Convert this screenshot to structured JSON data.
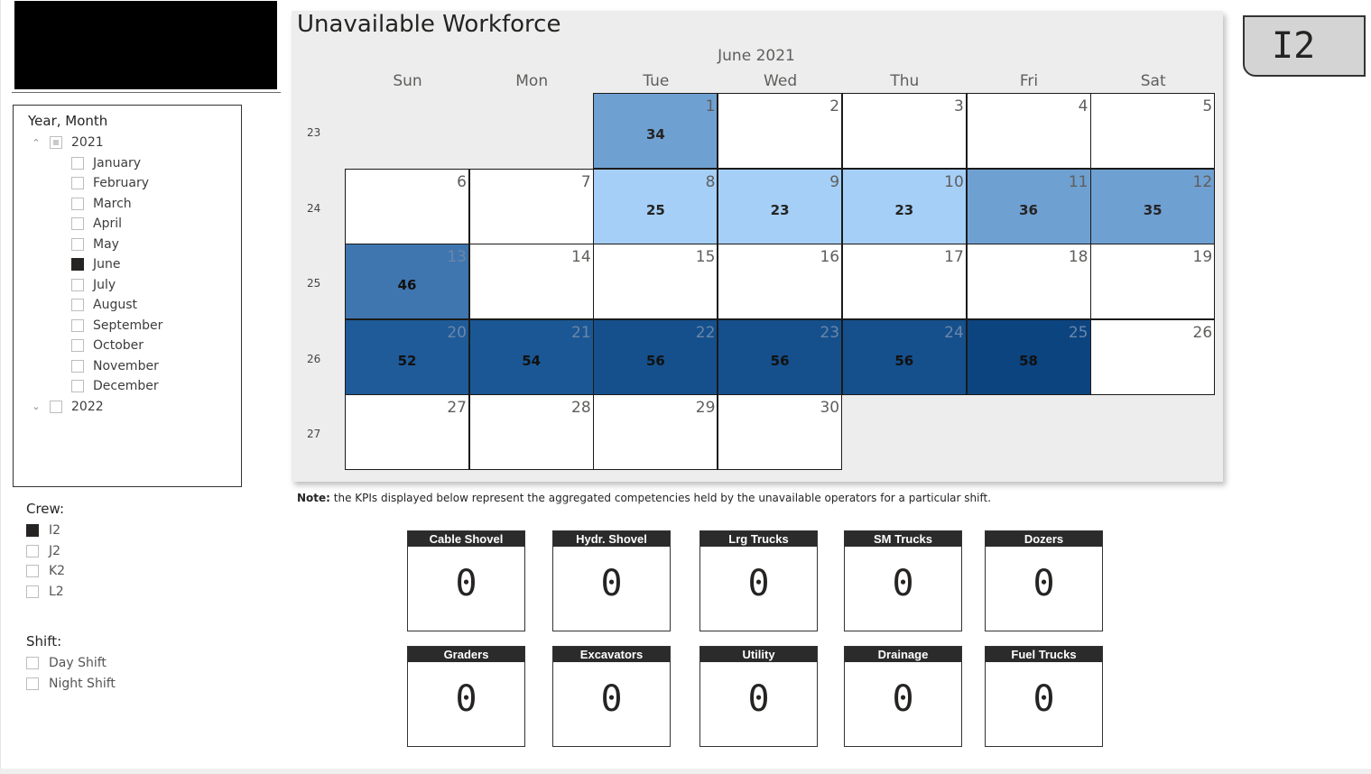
{
  "year_month_slicer": {
    "title": "Year, Month",
    "years": [
      {
        "label": "2021",
        "expanded": true,
        "state": "partial",
        "months": [
          {
            "label": "January",
            "checked": false
          },
          {
            "label": "February",
            "checked": false
          },
          {
            "label": "March",
            "checked": false
          },
          {
            "label": "April",
            "checked": false
          },
          {
            "label": "May",
            "checked": false
          },
          {
            "label": "June",
            "checked": true
          },
          {
            "label": "July",
            "checked": false
          },
          {
            "label": "August",
            "checked": false
          },
          {
            "label": "September",
            "checked": false
          },
          {
            "label": "October",
            "checked": false
          },
          {
            "label": "November",
            "checked": false
          },
          {
            "label": "December",
            "checked": false
          }
        ]
      },
      {
        "label": "2022",
        "expanded": false,
        "state": "unchecked",
        "months": []
      }
    ]
  },
  "crew_slicer": {
    "title": "Crew:",
    "options": [
      {
        "label": "I2",
        "checked": true
      },
      {
        "label": "J2",
        "checked": false
      },
      {
        "label": "K2",
        "checked": false
      },
      {
        "label": "L2",
        "checked": false
      }
    ]
  },
  "shift_slicer": {
    "title": "Shift:",
    "options": [
      {
        "label": "Day Shift",
        "checked": false
      },
      {
        "label": "Night Shift",
        "checked": false
      }
    ]
  },
  "calendar": {
    "title": "Unavailable Workforce",
    "month_label": "June 2021",
    "weekdays": [
      "Sun",
      "Mon",
      "Tue",
      "Wed",
      "Thu",
      "Fri",
      "Sat"
    ],
    "weeks": [
      {
        "week": "23",
        "days": [
          null,
          null,
          {
            "day": "1",
            "value": "34",
            "color": "#6fa0d2"
          },
          {
            "day": "2",
            "value": "",
            "color": "#ffffff"
          },
          {
            "day": "3",
            "value": "",
            "color": "#ffffff"
          },
          {
            "day": "4",
            "value": "",
            "color": "#ffffff"
          },
          {
            "day": "5",
            "value": "",
            "color": "#ffffff"
          }
        ]
      },
      {
        "week": "24",
        "days": [
          {
            "day": "6",
            "value": "",
            "color": "#ffffff"
          },
          {
            "day": "7",
            "value": "",
            "color": "#ffffff"
          },
          {
            "day": "8",
            "value": "25",
            "color": "#a5cff7"
          },
          {
            "day": "9",
            "value": "23",
            "color": "#a5cff7"
          },
          {
            "day": "10",
            "value": "23",
            "color": "#a5cff7"
          },
          {
            "day": "11",
            "value": "36",
            "color": "#6fa0d2"
          },
          {
            "day": "12",
            "value": "35",
            "color": "#6fa0d2"
          }
        ]
      },
      {
        "week": "25",
        "days": [
          {
            "day": "13",
            "value": "46",
            "color": "#3f76b0"
          },
          {
            "day": "14",
            "value": "",
            "color": "#ffffff"
          },
          {
            "day": "15",
            "value": "",
            "color": "#ffffff"
          },
          {
            "day": "16",
            "value": "",
            "color": "#ffffff"
          },
          {
            "day": "17",
            "value": "",
            "color": "#ffffff"
          },
          {
            "day": "18",
            "value": "",
            "color": "#ffffff"
          },
          {
            "day": "19",
            "value": "",
            "color": "#ffffff"
          }
        ]
      },
      {
        "week": "26",
        "days": [
          {
            "day": "20",
            "value": "52",
            "color": "#1f5b99"
          },
          {
            "day": "21",
            "value": "54",
            "color": "#1b5794"
          },
          {
            "day": "22",
            "value": "56",
            "color": "#15508c"
          },
          {
            "day": "23",
            "value": "56",
            "color": "#15508c"
          },
          {
            "day": "24",
            "value": "56",
            "color": "#15508c"
          },
          {
            "day": "25",
            "value": "58",
            "color": "#0c4480"
          },
          {
            "day": "26",
            "value": "",
            "color": "#ffffff"
          }
        ]
      },
      {
        "week": "27",
        "days": [
          {
            "day": "27",
            "value": "",
            "color": "#ffffff"
          },
          {
            "day": "28",
            "value": "",
            "color": "#ffffff"
          },
          {
            "day": "29",
            "value": "",
            "color": "#ffffff"
          },
          {
            "day": "30",
            "value": "",
            "color": "#ffffff"
          },
          null,
          null,
          null
        ]
      }
    ]
  },
  "crew_badge": "I2",
  "note": {
    "bold": "Note:",
    "text": " the KPIs displayed below represent the aggregated competencies held by the unavailable operators for a particular shift."
  },
  "kpis": [
    {
      "label": "Cable Shovel",
      "value": "0"
    },
    {
      "label": "Hydr. Shovel",
      "value": "0"
    },
    {
      "label": "Lrg Trucks",
      "value": "0"
    },
    {
      "label": "SM Trucks",
      "value": "0"
    },
    {
      "label": "Dozers",
      "value": "0"
    },
    {
      "label": "Graders",
      "value": "0"
    },
    {
      "label": "Excavators",
      "value": "0"
    },
    {
      "label": "Utility",
      "value": "0"
    },
    {
      "label": "Drainage",
      "value": "0"
    },
    {
      "label": "Fuel Trucks",
      "value": "0"
    }
  ]
}
